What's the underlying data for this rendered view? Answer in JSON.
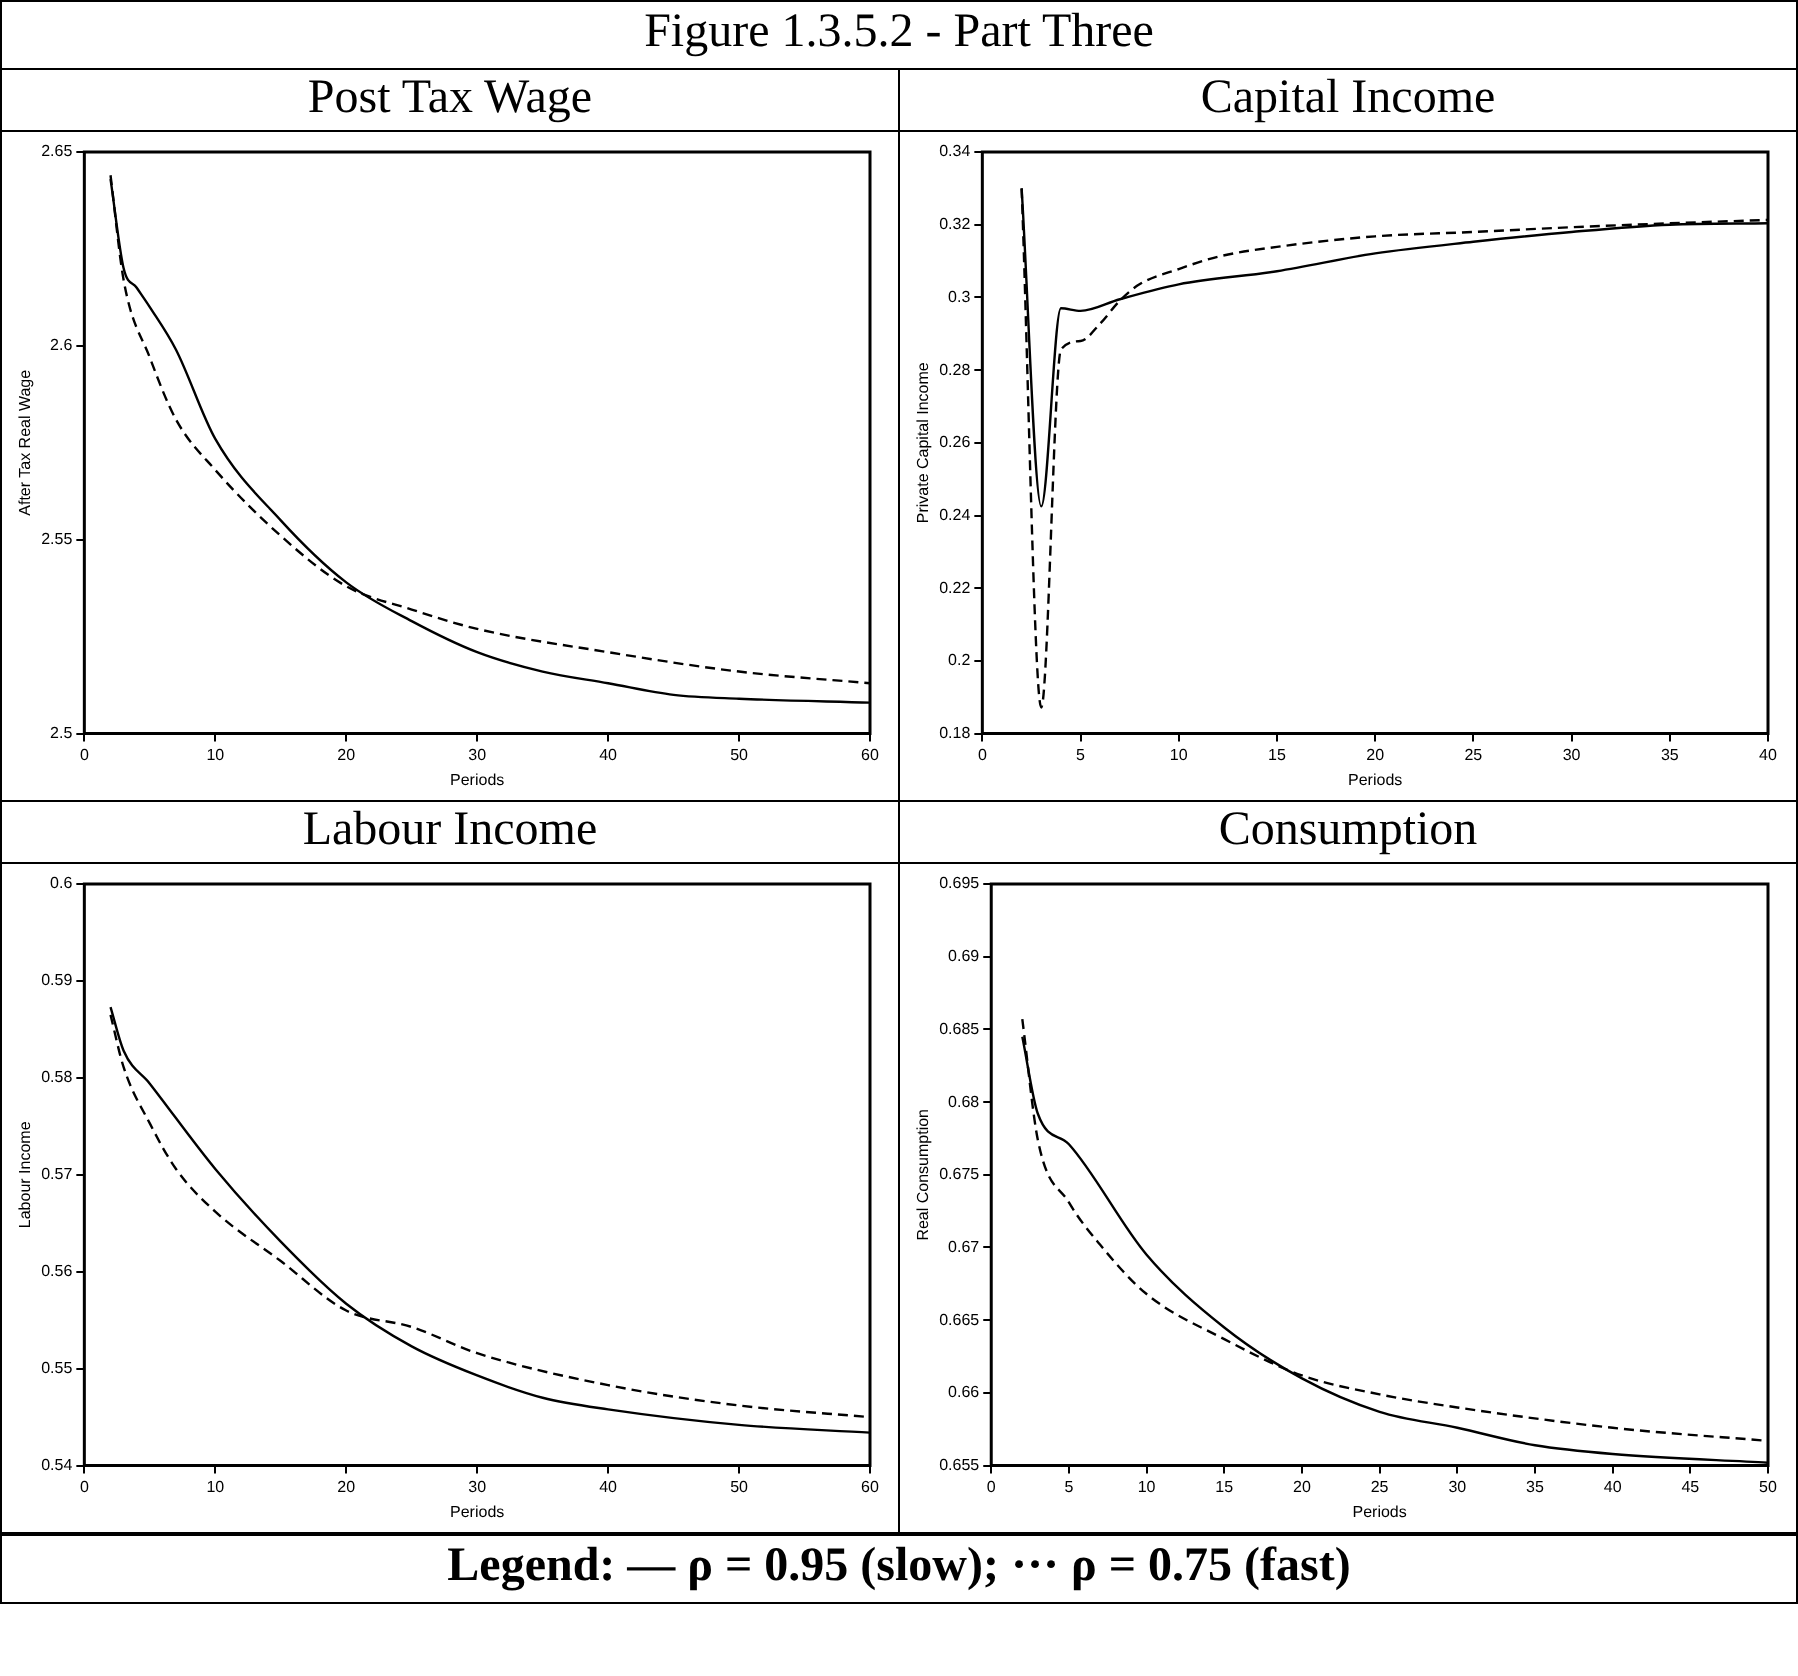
{
  "chart_data": [
    {
      "type": "line",
      "title": "Post Tax Wage",
      "xlabel": "Periods",
      "ylabel": "After Tax Real Wage",
      "annotations": [
        "Figure 1.3.5.2 - Part Three"
      ],
      "marker": "none",
      "xlim": [
        0,
        60
      ],
      "xticks": [
        0,
        10,
        20,
        30,
        40,
        50,
        60
      ],
      "ylim": [
        2.5,
        2.65
      ],
      "yticks": [
        2.5,
        2.55,
        2.6,
        2.65
      ],
      "series": [
        {
          "color": "#000000",
          "line_style": "solid",
          "x": [
            2,
            3,
            4,
            5,
            7,
            10,
            15,
            20,
            25,
            30,
            35,
            40,
            45,
            50,
            60
          ],
          "values": [
            2.643,
            2.62,
            2.615,
            2.61,
            2.599,
            2.576,
            2.555,
            2.539,
            2.529,
            2.521,
            2.516,
            2.513,
            2.51,
            2.509,
            2.508
          ]
        },
        {
          "color": "#000000",
          "line_style": "dashed",
          "x": [
            2,
            3,
            5,
            7,
            10,
            15,
            20,
            25,
            30,
            40,
            50,
            60
          ],
          "values": [
            2.644,
            2.617,
            2.597,
            2.581,
            2.568,
            2.551,
            2.538,
            2.532,
            2.527,
            2.521,
            2.516,
            2.513
          ]
        }
      ]
    },
    {
      "type": "line",
      "title": "Capital Income",
      "xlabel": "Periods",
      "ylabel": "Private Capital Income",
      "marker": "none",
      "xlim": [
        0,
        40
      ],
      "xticks": [
        0,
        5,
        10,
        15,
        20,
        25,
        30,
        35,
        40
      ],
      "ylim": [
        0.18,
        0.34
      ],
      "yticks": [
        0.18,
        0.2,
        0.22,
        0.24,
        0.26,
        0.28,
        0.3,
        0.32,
        0.34
      ],
      "series": [
        {
          "color": "#000000",
          "line_style": "solid",
          "x": [
            2,
            3,
            4,
            5,
            7,
            10,
            15,
            20,
            25,
            30,
            35,
            40
          ],
          "values": [
            0.33,
            0.2425,
            0.297,
            0.2963,
            0.2995,
            0.3036,
            0.3072,
            0.3121,
            0.3153,
            0.318,
            0.32,
            0.3204
          ]
        },
        {
          "color": "#000000",
          "line_style": "dashed",
          "x": [
            2,
            3,
            4,
            5,
            6,
            7,
            8,
            10,
            12,
            15,
            20,
            25,
            30,
            35,
            40
          ],
          "values": [
            0.33,
            0.1872,
            0.2856,
            0.288,
            0.2928,
            0.2991,
            0.3036,
            0.3078,
            0.3112,
            0.3139,
            0.3168,
            0.318,
            0.3193,
            0.3204,
            0.3213
          ]
        }
      ]
    },
    {
      "type": "line",
      "title": "Labour Income",
      "xlabel": "Periods",
      "ylabel": "Labour Income",
      "marker": "none",
      "xlim": [
        0,
        60
      ],
      "xticks": [
        0,
        10,
        20,
        30,
        40,
        50,
        60
      ],
      "ylim": [
        0.54,
        0.6
      ],
      "yticks": [
        0.54,
        0.55,
        0.56,
        0.57,
        0.58,
        0.59,
        0.6
      ],
      "series": [
        {
          "color": "#000000",
          "line_style": "solid",
          "x": [
            2,
            3,
            5,
            10,
            15,
            20,
            25,
            30,
            35,
            40,
            50,
            60
          ],
          "values": [
            0.5873,
            0.5828,
            0.5794,
            0.5706,
            0.5631,
            0.5567,
            0.5523,
            0.5493,
            0.547,
            0.5458,
            0.5442,
            0.5434
          ]
        },
        {
          "color": "#000000",
          "line_style": "dashed",
          "x": [
            2,
            3,
            5,
            7,
            10,
            15,
            20,
            25,
            30,
            40,
            50,
            60
          ],
          "values": [
            0.5865,
            0.5811,
            0.5753,
            0.5706,
            0.5662,
            0.5611,
            0.556,
            0.5543,
            0.5516,
            0.5483,
            0.5462,
            0.545
          ]
        }
      ]
    },
    {
      "type": "line",
      "title": "Consumption",
      "xlabel": "Periods",
      "ylabel": "Real Consumption",
      "annotations": [
        "Legend: — ρ = 0.95 (slow); ··· ρ = 0.75 (fast)"
      ],
      "marker": "none",
      "xlim": [
        0,
        50
      ],
      "xticks": [
        0,
        5,
        10,
        15,
        20,
        25,
        30,
        35,
        40,
        45,
        50
      ],
      "ylim": [
        0.655,
        0.695
      ],
      "yticks": [
        0.655,
        0.66,
        0.665,
        0.67,
        0.675,
        0.68,
        0.685,
        0.69,
        0.695
      ],
      "series": [
        {
          "color": "#000000",
          "line_style": "solid",
          "x": [
            2,
            3,
            5,
            10,
            15,
            20,
            25,
            30,
            35,
            40,
            50
          ],
          "values": [
            0.6845,
            0.6792,
            0.6771,
            0.6695,
            0.6645,
            0.661,
            0.6587,
            0.6576,
            0.6564,
            0.6558,
            0.6552
          ]
        },
        {
          "color": "#000000",
          "line_style": "dashed",
          "x": [
            2,
            3,
            5,
            7,
            10,
            15,
            20,
            25,
            30,
            40,
            50
          ],
          "values": [
            0.6857,
            0.6774,
            0.6731,
            0.6702,
            0.6668,
            0.6637,
            0.6612,
            0.6599,
            0.659,
            0.6576,
            0.6567
          ]
        }
      ]
    }
  ]
}
